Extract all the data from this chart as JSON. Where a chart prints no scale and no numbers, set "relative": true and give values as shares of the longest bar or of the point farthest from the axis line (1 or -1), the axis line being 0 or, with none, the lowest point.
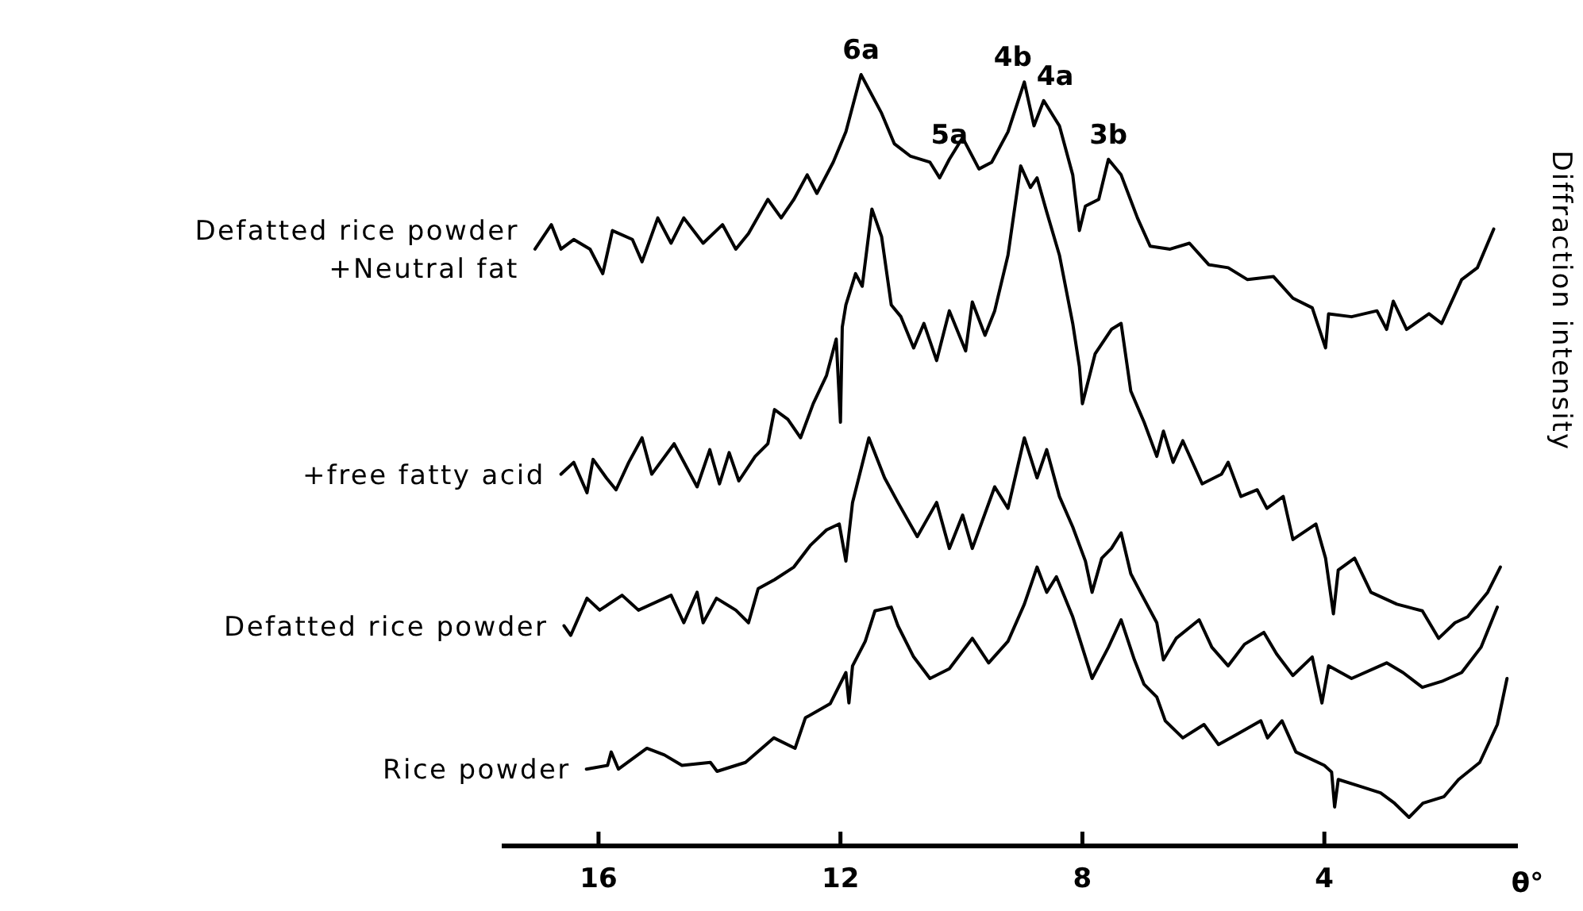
{
  "chart_data": {
    "type": "line",
    "relative": true,
    "xlabel": "θ°",
    "ylabel": "Diffraction intensity",
    "xlim": [
      17.6,
      0.8
    ],
    "xticks": [
      16,
      12,
      8,
      4
    ],
    "annotations": [
      {
        "text": "6a",
        "x": 11.66,
        "y": 1
      },
      {
        "text": "5a",
        "x": 10.2,
        "y": 0.886
      },
      {
        "text": "4b",
        "x": 8.96,
        "y": 0.99
      },
      {
        "text": "4a",
        "x": 8.64,
        "y": 0.965
      },
      {
        "text": "3b",
        "x": 7.57,
        "y": 0.886
      }
    ],
    "series": [
      {
        "name": "Defatted rice powder\n+Neutral fat",
        "color": "#000000",
        "x": [
          17.05,
          16.78,
          16.62,
          16.41,
          16.14,
          15.93,
          15.77,
          15.44,
          15.28,
          15.02,
          14.8,
          14.59,
          14.27,
          13.95,
          13.73,
          13.52,
          13.2,
          12.98,
          12.77,
          12.55,
          12.39,
          12.12,
          11.91,
          11.66,
          11.32,
          11.11,
          10.84,
          10.52,
          10.36,
          10.2,
          9.98,
          9.71,
          9.5,
          9.23,
          8.96,
          8.8,
          8.64,
          8.38,
          8.16,
          8.05,
          7.95,
          7.73,
          7.57,
          7.36,
          7.09,
          6.88,
          6.55,
          6.23,
          5.91,
          5.59,
          5.27,
          4.84,
          4.52,
          4.2,
          3.98,
          3.93,
          3.55,
          3.13,
          2.97,
          2.86,
          2.64,
          2.27,
          2.06,
          1.73,
          1.47,
          1.2
        ],
        "values": [
          0.765,
          0.798,
          0.765,
          0.778,
          0.765,
          0.732,
          0.79,
          0.778,
          0.748,
          0.807,
          0.773,
          0.807,
          0.773,
          0.798,
          0.765,
          0.786,
          0.832,
          0.807,
          0.832,
          0.865,
          0.84,
          0.882,
          0.923,
          1,
          0.948,
          0.907,
          0.89,
          0.882,
          0.861,
          0.886,
          0.915,
          0.873,
          0.882,
          0.923,
          0.99,
          0.931,
          0.965,
          0.931,
          0.865,
          0.79,
          0.823,
          0.832,
          0.886,
          0.865,
          0.807,
          0.769,
          0.765,
          0.773,
          0.744,
          0.74,
          0.724,
          0.728,
          0.699,
          0.686,
          0.632,
          0.678,
          0.674,
          0.682,
          0.657,
          0.695,
          0.657,
          0.678,
          0.665,
          0.724,
          0.74,
          0.792
        ]
      },
      {
        "name": "+free fatty acid",
        "color": "#000000",
        "x": [
          16.62,
          16.41,
          16.19,
          16.09,
          15.87,
          15.71,
          15.5,
          15.28,
          15.12,
          14.75,
          14.37,
          14.16,
          14.0,
          13.84,
          13.68,
          13.41,
          13.2,
          13.09,
          12.87,
          12.66,
          12.45,
          12.23,
          12.07,
          12.0,
          11.97,
          11.91,
          11.75,
          11.64,
          11.48,
          11.32,
          11.16,
          11.0,
          10.79,
          10.62,
          10.41,
          10.2,
          9.93,
          9.82,
          9.61,
          9.45,
          9.23,
          9.02,
          8.86,
          8.75,
          8.59,
          8.38,
          8.16,
          8.05,
          8.0,
          7.79,
          7.52,
          7.36,
          7.2,
          6.98,
          6.77,
          6.66,
          6.5,
          6.34,
          6.02,
          5.7,
          5.59,
          5.38,
          5.11,
          4.95,
          4.68,
          4.52,
          4.14,
          3.98,
          3.85,
          3.77,
          3.5,
          3.23,
          2.8,
          2.38,
          2.11,
          1.84,
          1.63,
          1.3,
          1.09
        ],
        "values": [
          0.462,
          0.478,
          0.437,
          0.482,
          0.457,
          0.441,
          0.478,
          0.511,
          0.462,
          0.503,
          0.445,
          0.495,
          0.449,
          0.491,
          0.453,
          0.486,
          0.503,
          0.549,
          0.536,
          0.511,
          0.557,
          0.595,
          0.644,
          0.532,
          0.66,
          0.69,
          0.732,
          0.715,
          0.819,
          0.782,
          0.69,
          0.674,
          0.632,
          0.665,
          0.615,
          0.682,
          0.628,
          0.694,
          0.649,
          0.682,
          0.757,
          0.877,
          0.848,
          0.861,
          0.815,
          0.757,
          0.665,
          0.607,
          0.557,
          0.624,
          0.657,
          0.665,
          0.574,
          0.532,
          0.486,
          0.52,
          0.478,
          0.507,
          0.449,
          0.462,
          0.478,
          0.432,
          0.441,
          0.416,
          0.432,
          0.374,
          0.395,
          0.349,
          0.274,
          0.333,
          0.349,
          0.303,
          0.287,
          0.278,
          0.241,
          0.262,
          0.27,
          0.303,
          0.337
        ]
      },
      {
        "name": "Defatted rice powder",
        "color": "#000000",
        "x": [
          16.57,
          16.46,
          16.19,
          15.98,
          15.61,
          15.34,
          14.8,
          14.59,
          14.37,
          14.27,
          14.05,
          13.73,
          13.52,
          13.36,
          13.09,
          12.77,
          12.5,
          12.23,
          12.02,
          11.91,
          11.8,
          11.53,
          11.27,
          11.05,
          10.73,
          10.41,
          10.2,
          9.98,
          9.82,
          9.45,
          9.23,
          8.96,
          8.75,
          8.59,
          8.38,
          8.16,
          7.95,
          7.84,
          7.68,
          7.52,
          7.36,
          7.2,
          7.04,
          6.77,
          6.66,
          6.45,
          6.07,
          5.86,
          5.59,
          5.32,
          5.0,
          4.79,
          4.52,
          4.2,
          4.04,
          3.93,
          3.55,
          2.97,
          2.7,
          2.38,
          2.06,
          1.73,
          1.41,
          1.14
        ],
        "values": [
          0.258,
          0.245,
          0.295,
          0.279,
          0.299,
          0.279,
          0.299,
          0.262,
          0.303,
          0.262,
          0.295,
          0.279,
          0.262,
          0.308,
          0.32,
          0.337,
          0.366,
          0.387,
          0.395,
          0.345,
          0.424,
          0.511,
          0.457,
          0.424,
          0.378,
          0.424,
          0.362,
          0.407,
          0.362,
          0.445,
          0.416,
          0.511,
          0.457,
          0.495,
          0.432,
          0.391,
          0.345,
          0.303,
          0.349,
          0.362,
          0.383,
          0.328,
          0.303,
          0.262,
          0.212,
          0.241,
          0.266,
          0.229,
          0.204,
          0.233,
          0.249,
          0.22,
          0.191,
          0.216,
          0.154,
          0.204,
          0.187,
          0.208,
          0.195,
          0.175,
          0.183,
          0.195,
          0.229,
          0.283
        ]
      },
      {
        "name": "Rice powder",
        "color": "#000000",
        "x": [
          16.2,
          15.85,
          15.79,
          15.67,
          15.2,
          14.91,
          14.62,
          14.15,
          14.04,
          13.57,
          13.1,
          12.75,
          12.58,
          12.17,
          11.91,
          11.86,
          11.8,
          11.59,
          11.43,
          11.16,
          11.05,
          10.79,
          10.52,
          10.2,
          9.82,
          9.55,
          9.23,
          8.96,
          8.75,
          8.59,
          8.43,
          8.16,
          7.84,
          7.57,
          7.36,
          7.14,
          6.98,
          6.77,
          6.63,
          6.34,
          5.99,
          5.75,
          5.46,
          5.05,
          4.94,
          4.7,
          4.47,
          4.0,
          3.88,
          3.83,
          3.77,
          3.42,
          3.07,
          2.84,
          2.6,
          2.37,
          2.02,
          1.78,
          1.43,
          1.14,
          0.98
        ],
        "values": [
          0.065,
          0.07,
          0.088,
          0.065,
          0.093,
          0.084,
          0.07,
          0.074,
          0.062,
          0.074,
          0.107,
          0.093,
          0.134,
          0.153,
          0.195,
          0.154,
          0.204,
          0.237,
          0.278,
          0.283,
          0.258,
          0.216,
          0.187,
          0.2,
          0.241,
          0.208,
          0.237,
          0.287,
          0.337,
          0.303,
          0.324,
          0.27,
          0.187,
          0.229,
          0.266,
          0.212,
          0.179,
          0.162,
          0.13,
          0.107,
          0.125,
          0.098,
          0.111,
          0.13,
          0.107,
          0.13,
          0.088,
          0.07,
          0.061,
          0.014,
          0.051,
          0.042,
          0.033,
          0.019,
          0,
          0.019,
          0.028,
          0.051,
          0.074,
          0.125,
          0.187
        ]
      }
    ]
  }
}
